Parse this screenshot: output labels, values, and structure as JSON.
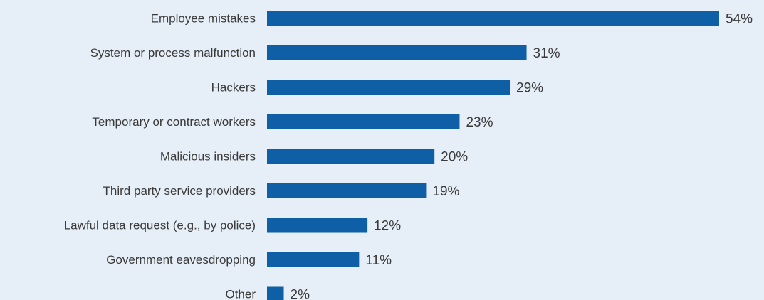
{
  "colors": {
    "background": "#e6eef7",
    "bar": "#0f5fa6",
    "text": "#3a3a3a"
  },
  "chart_data": {
    "type": "bar",
    "orientation": "horizontal",
    "categories": [
      "Employee mistakes",
      "System or process malfunction",
      "Hackers",
      "Temporary or contract workers",
      "Malicious insiders",
      "Third party service providers",
      "Lawful data request (e.g., by police)",
      "Government eavesdropping",
      "Other"
    ],
    "values": [
      54,
      31,
      29,
      23,
      20,
      19,
      12,
      11,
      2
    ],
    "value_labels": [
      "54%",
      "31%",
      "29%",
      "23%",
      "20%",
      "19%",
      "12%",
      "11%",
      "2%"
    ],
    "unit": "%",
    "xlim": [
      0,
      54
    ],
    "grid": false,
    "legend": "none"
  }
}
